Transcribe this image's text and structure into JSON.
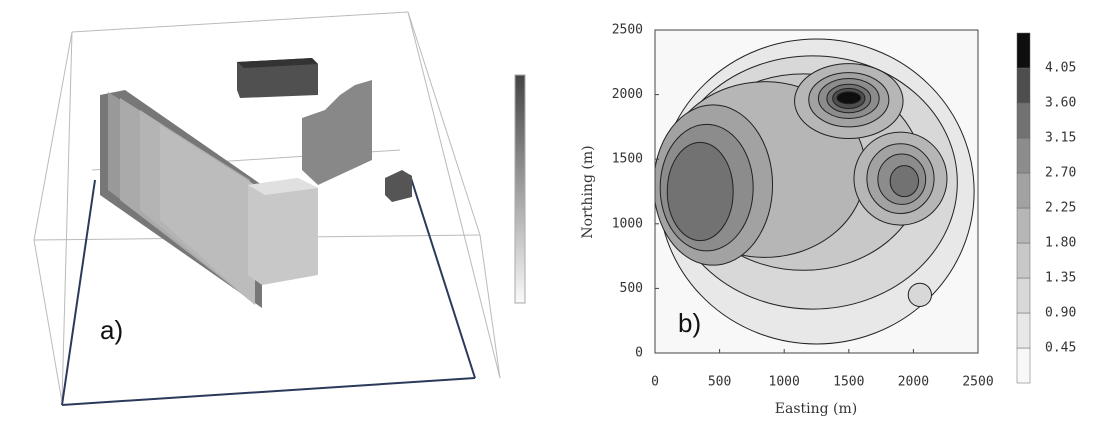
{
  "chart_data": [
    {
      "type": "block-model",
      "label": "a)"
    },
    {
      "type": "contour",
      "label": "b)",
      "xlabel": "Easting (m)",
      "ylabel": "Northing (m)",
      "xlim": [
        0,
        2500
      ],
      "xticks": [
        0,
        500,
        1000,
        1500,
        2000,
        2500
      ],
      "ylim": [
        0,
        2500
      ],
      "yticks": [
        0,
        500,
        1000,
        1500,
        2000,
        2500
      ],
      "levels": [
        0.45,
        {
          "value": 0.9,
          "label": "0.90"
        },
        1.35,
        {
          "value": 1.8,
          "label": "1.80"
        },
        2.25,
        {
          "value": 2.7,
          "label": "2.70"
        },
        3.15,
        {
          "value": 3.6,
          "label": "3.60"
        },
        4.05
      ],
      "colors": [
        "#f8f8f8",
        "#e8e8e8",
        "#d8d8d8",
        "#c8c8c8",
        "#b6b6b6",
        "#a2a2a2",
        "#8c8c8c",
        "#727272",
        "#4e4e4e",
        "#0e0e0e"
      ],
      "contours": [
        {
          "level": 0.45,
          "cx": 1250,
          "cy": 1250,
          "rx": 1220,
          "ry": 1180
        },
        {
          "level": 0.9,
          "cx": 1220,
          "cy": 1320,
          "rx": 1120,
          "ry": 980
        },
        {
          "level": 0.9,
          "cx": 2050,
          "cy": 450,
          "rx": 90,
          "ry": 90
        },
        {
          "level": 1.35,
          "cx": 1150,
          "cy": 1400,
          "rx": 920,
          "ry": 760
        },
        {
          "level": 1.8,
          "cx": 850,
          "cy": 1420,
          "rx": 780,
          "ry": 680
        },
        {
          "level": 1.8,
          "cx": 1900,
          "cy": 1350,
          "rx": 360,
          "ry": 360
        },
        {
          "level": 1.8,
          "cx": 1500,
          "cy": 1950,
          "rx": 420,
          "ry": 290
        },
        {
          "level": 2.25,
          "cx": 450,
          "cy": 1300,
          "rx": 460,
          "ry": 620
        },
        {
          "level": 2.25,
          "cx": 1500,
          "cy": 1960,
          "rx": 310,
          "ry": 210
        },
        {
          "level": 2.25,
          "cx": 1900,
          "cy": 1350,
          "rx": 260,
          "ry": 270
        },
        {
          "level": 2.7,
          "cx": 400,
          "cy": 1280,
          "rx": 360,
          "ry": 490
        },
        {
          "level": 2.7,
          "cx": 1500,
          "cy": 1970,
          "rx": 235,
          "ry": 155
        },
        {
          "level": 2.7,
          "cx": 1910,
          "cy": 1345,
          "rx": 185,
          "ry": 195
        },
        {
          "level": 3.15,
          "cx": 350,
          "cy": 1250,
          "rx": 255,
          "ry": 380
        },
        {
          "level": 3.15,
          "cx": 1500,
          "cy": 1970,
          "rx": 170,
          "ry": 110
        },
        {
          "level": 3.15,
          "cx": 1930,
          "cy": 1330,
          "rx": 110,
          "ry": 120
        },
        {
          "level": 3.6,
          "cx": 1500,
          "cy": 1970,
          "rx": 125,
          "ry": 78
        },
        {
          "level": 4.05,
          "cx": 1500,
          "cy": 1975,
          "rx": 92,
          "ry": 46
        }
      ]
    }
  ]
}
